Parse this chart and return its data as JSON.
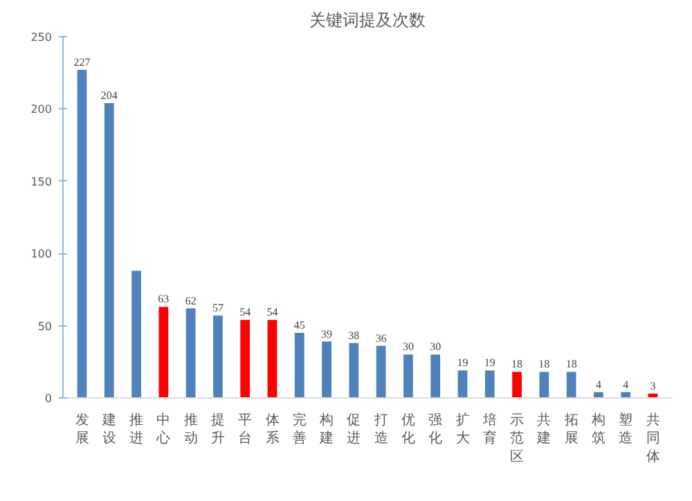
{
  "chart_data": {
    "type": "bar",
    "title": "关键词提及次数",
    "categories": [
      "发展",
      "建设",
      "推进",
      "中心",
      "推动",
      "提升",
      "平台",
      "体系",
      "完善",
      "构建",
      "促进",
      "打造",
      "优化",
      "强化",
      "扩大",
      "培育",
      "示范区",
      "共建",
      "拓展",
      "构筑",
      "塑造",
      "共同体"
    ],
    "values": [
      227,
      204,
      88,
      63,
      62,
      57,
      54,
      54,
      45,
      39,
      38,
      36,
      30,
      30,
      19,
      19,
      18,
      18,
      18,
      4,
      4,
      3
    ],
    "value_labels": [
      "227",
      "204",
      null,
      "63",
      "62",
      "57",
      "54",
      "54",
      "45",
      "39",
      "38",
      "36",
      "30",
      "30",
      "19",
      "19",
      "18",
      "18",
      "18",
      "4",
      "4",
      "3"
    ],
    "colors": [
      "#4f81bd",
      "#4f81bd",
      "#4f81bd",
      "#ff0000",
      "#4f81bd",
      "#4f81bd",
      "#ff0000",
      "#ff0000",
      "#4f81bd",
      "#4f81bd",
      "#4f81bd",
      "#4f81bd",
      "#4f81bd",
      "#4f81bd",
      "#4f81bd",
      "#4f81bd",
      "#ff0000",
      "#4f81bd",
      "#4f81bd",
      "#4f81bd",
      "#4f81bd",
      "#ff0000"
    ],
    "ylim": [
      0,
      250
    ],
    "yticks": [
      0,
      50,
      100,
      150,
      200,
      250
    ],
    "grid": false
  }
}
